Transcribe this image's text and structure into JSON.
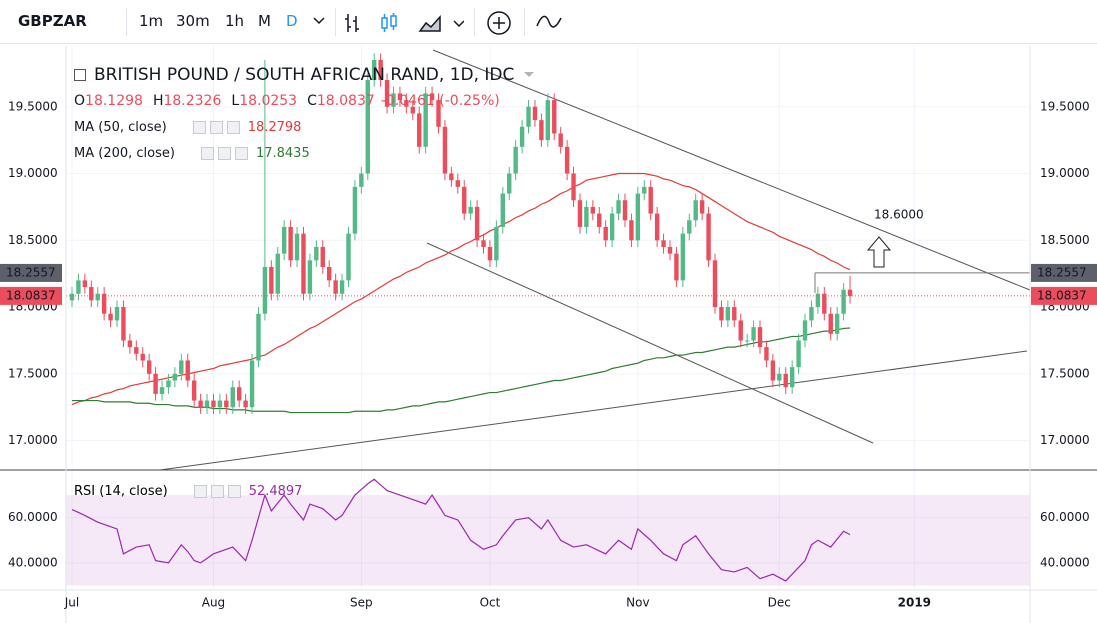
{
  "toolbar": {
    "symbol": "GBPZAR",
    "intervals": [
      "1m",
      "30m",
      "1h",
      "M",
      "D"
    ]
  },
  "chart_data": {
    "type": "candlestick",
    "title": "BRITISH POUND / SOUTH AFRICAN RAND, 1D, IDC",
    "ohlc_labels": [
      "O",
      "H",
      "L",
      "C"
    ],
    "change": "-0.0461 (-0.25%)",
    "categories": [
      "Jul",
      null,
      null,
      null,
      null,
      null,
      null,
      null,
      null,
      null,
      null,
      null,
      null,
      null,
      null,
      null,
      null,
      null,
      null,
      null,
      null,
      null,
      "Aug",
      null,
      null,
      null,
      null,
      null,
      null,
      null,
      null,
      null,
      null,
      null,
      null,
      null,
      null,
      null,
      null,
      null,
      null,
      null,
      null,
      null,
      null,
      "Sep",
      null,
      null,
      null,
      null,
      null,
      null,
      null,
      null,
      null,
      null,
      null,
      null,
      null,
      null,
      null,
      null,
      null,
      null,
      null,
      "Oct",
      null,
      null,
      null,
      null,
      null,
      null,
      null,
      null,
      null,
      null,
      null,
      null,
      null,
      null,
      null,
      null,
      null,
      null,
      null,
      null,
      null,
      null,
      "Nov",
      null,
      null,
      null,
      null,
      null,
      null,
      null,
      null,
      null,
      null,
      null,
      null,
      null,
      null,
      null,
      null,
      null,
      null,
      null,
      null,
      null,
      "Dec",
      null,
      null,
      null,
      null,
      null,
      null,
      null,
      null,
      null,
      null,
      null,
      null,
      null,
      null,
      null,
      null,
      null,
      null,
      null,
      null,
      "2019",
      null,
      null,
      null,
      null,
      null,
      null,
      null,
      null,
      null,
      null,
      null,
      null,
      null,
      null,
      null,
      null,
      null,
      null
    ],
    "open": [
      18.05,
      18.1,
      18.2,
      18.15,
      18.05,
      18.1,
      17.95,
      17.9,
      18.0,
      17.75,
      17.7,
      17.65,
      17.6,
      17.5,
      17.35,
      17.4,
      17.45,
      17.5,
      17.6,
      17.45,
      17.3,
      17.25,
      17.3,
      17.25,
      17.3,
      17.25,
      17.4,
      17.3,
      17.25,
      17.6,
      17.95,
      18.3,
      18.1,
      18.4,
      18.6,
      18.35,
      18.55,
      18.1,
      18.35,
      18.45,
      18.3,
      18.2,
      18.1,
      18.2,
      18.55,
      18.9,
      19.0,
      19.7,
      19.85,
      19.7,
      19.5,
      19.6,
      19.55,
      19.5,
      19.45,
      19.2,
      19.6,
      19.55,
      19.35,
      19.0,
      18.95,
      18.9,
      18.7,
      18.75,
      18.5,
      18.45,
      18.35,
      18.6,
      18.85,
      19.0,
      19.2,
      19.35,
      19.5,
      19.4,
      19.25,
      19.55,
      19.3,
      19.2,
      19.0,
      18.8,
      18.6,
      18.75,
      18.7,
      18.6,
      18.5,
      18.7,
      18.8,
      18.65,
      18.5,
      18.85,
      18.9,
      18.7,
      18.5,
      18.45,
      18.4,
      18.2,
      18.55,
      18.65,
      18.8,
      18.7,
      18.35,
      18.0,
      17.9,
      18.0,
      17.9,
      17.75,
      17.75,
      17.85,
      17.7,
      17.6,
      17.45,
      17.5,
      17.4,
      17.55,
      17.75,
      17.9,
      18.0,
      18.1,
      17.95,
      17.8,
      17.95,
      18.1298,
      null,
      null,
      null,
      null,
      null,
      null,
      null,
      null,
      null,
      null,
      null,
      null,
      null,
      null,
      null,
      null,
      null,
      null,
      null,
      null,
      null,
      null,
      null,
      null,
      null,
      null,
      null,
      null
    ],
    "high": [
      18.15,
      18.25,
      18.25,
      18.2,
      18.15,
      18.15,
      18.0,
      18.05,
      18.05,
      17.8,
      17.75,
      17.7,
      17.65,
      17.55,
      17.45,
      17.5,
      17.55,
      17.65,
      17.65,
      17.5,
      17.35,
      17.35,
      17.35,
      17.35,
      17.35,
      17.45,
      17.45,
      17.35,
      17.65,
      18.0,
      19.85,
      18.35,
      18.45,
      18.65,
      18.65,
      18.6,
      18.6,
      18.4,
      18.5,
      18.5,
      18.35,
      18.25,
      18.25,
      18.6,
      18.95,
      19.05,
      19.75,
      19.9,
      19.9,
      19.75,
      19.65,
      19.65,
      19.6,
      19.55,
      19.5,
      19.65,
      19.65,
      19.6,
      19.4,
      19.05,
      19.0,
      18.95,
      18.8,
      18.8,
      18.55,
      18.5,
      18.65,
      18.9,
      19.05,
      19.25,
      19.4,
      19.55,
      19.55,
      19.45,
      19.6,
      19.6,
      19.35,
      19.25,
      19.05,
      18.85,
      18.8,
      18.8,
      18.75,
      18.65,
      18.75,
      18.85,
      18.85,
      18.7,
      18.9,
      18.95,
      18.95,
      18.75,
      18.55,
      18.5,
      18.45,
      18.6,
      18.7,
      18.85,
      18.85,
      18.75,
      18.4,
      18.05,
      18.05,
      18.05,
      17.95,
      17.8,
      17.9,
      17.9,
      17.75,
      17.65,
      17.55,
      17.55,
      17.6,
      17.8,
      17.95,
      18.05,
      18.15,
      18.15,
      18.0,
      18.0,
      18.18,
      18.2326,
      null,
      null,
      null,
      null,
      null,
      null,
      null,
      null,
      null,
      null,
      null,
      null,
      null,
      null,
      null,
      null,
      null,
      null,
      null,
      null,
      null,
      null,
      null,
      null,
      null,
      null,
      null,
      null
    ],
    "low": [
      18.0,
      18.05,
      18.1,
      18.0,
      18.0,
      17.9,
      17.85,
      17.85,
      17.7,
      17.65,
      17.6,
      17.55,
      17.45,
      17.3,
      17.3,
      17.35,
      17.4,
      17.45,
      17.4,
      17.25,
      17.2,
      17.2,
      17.2,
      17.2,
      17.2,
      17.2,
      17.25,
      17.2,
      17.2,
      17.55,
      17.9,
      18.05,
      18.05,
      18.35,
      18.3,
      18.3,
      18.05,
      18.05,
      18.3,
      18.25,
      18.15,
      18.05,
      18.05,
      18.15,
      18.5,
      18.85,
      18.95,
      19.65,
      19.65,
      19.45,
      19.45,
      19.5,
      19.45,
      19.4,
      19.15,
      19.15,
      19.5,
      19.3,
      18.95,
      18.9,
      18.85,
      18.65,
      18.65,
      18.45,
      18.4,
      18.3,
      18.3,
      18.55,
      18.8,
      18.95,
      19.15,
      19.3,
      19.35,
      19.2,
      19.2,
      19.25,
      19.15,
      18.95,
      18.75,
      18.55,
      18.55,
      18.65,
      18.55,
      18.45,
      18.45,
      18.65,
      18.6,
      18.45,
      18.45,
      18.8,
      18.65,
      18.45,
      18.4,
      18.35,
      18.15,
      18.15,
      18.5,
      18.6,
      18.65,
      18.3,
      17.95,
      17.85,
      17.85,
      17.85,
      17.7,
      17.7,
      17.7,
      17.65,
      17.55,
      17.4,
      17.4,
      17.35,
      17.35,
      17.5,
      17.7,
      17.85,
      17.95,
      17.9,
      17.75,
      17.75,
      17.9,
      18.0253,
      null,
      null,
      null,
      null,
      null,
      null,
      null,
      null,
      null,
      null,
      null,
      null,
      null,
      null,
      null,
      null,
      null,
      null,
      null,
      null,
      null,
      null,
      null,
      null,
      null,
      null,
      null,
      null
    ],
    "close": [
      18.1,
      18.2,
      18.15,
      18.05,
      18.1,
      17.95,
      17.9,
      18.0,
      17.75,
      17.7,
      17.65,
      17.6,
      17.5,
      17.35,
      17.4,
      17.45,
      17.5,
      17.6,
      17.45,
      17.3,
      17.25,
      17.3,
      17.25,
      17.3,
      17.25,
      17.4,
      17.3,
      17.25,
      17.6,
      17.95,
      18.3,
      18.1,
      18.4,
      18.6,
      18.35,
      18.55,
      18.1,
      18.35,
      18.45,
      18.3,
      18.2,
      18.1,
      18.2,
      18.55,
      18.9,
      19.0,
      19.7,
      19.85,
      19.7,
      19.5,
      19.6,
      19.55,
      19.5,
      19.45,
      19.2,
      19.6,
      19.55,
      19.35,
      19.0,
      18.95,
      18.9,
      18.7,
      18.75,
      18.5,
      18.45,
      18.35,
      18.6,
      18.85,
      19.0,
      19.2,
      19.35,
      19.5,
      19.4,
      19.25,
      19.55,
      19.3,
      19.2,
      19.0,
      18.8,
      18.6,
      18.75,
      18.7,
      18.6,
      18.5,
      18.7,
      18.8,
      18.65,
      18.5,
      18.85,
      18.9,
      18.7,
      18.5,
      18.45,
      18.4,
      18.2,
      18.55,
      18.65,
      18.8,
      18.7,
      18.35,
      18.0,
      17.9,
      18.0,
      17.9,
      17.75,
      17.75,
      17.85,
      17.7,
      17.6,
      17.45,
      17.5,
      17.4,
      17.55,
      17.75,
      17.9,
      18.0,
      18.1,
      17.95,
      17.8,
      17.95,
      18.13,
      18.0837,
      null,
      null,
      null,
      null,
      null,
      null,
      null,
      null,
      null,
      null,
      null,
      null,
      null,
      null,
      null,
      null,
      null,
      null,
      null,
      null,
      null,
      null,
      null,
      null,
      null,
      null,
      null,
      null
    ],
    "up_color": "#53b987",
    "down_color": "#eb4d5c",
    "series": [
      {
        "name": "MA (50, close)",
        "color": "#e53935",
        "values": [
          17.27,
          17.29,
          17.3,
          17.32,
          17.33,
          17.35,
          17.36,
          17.38,
          17.39,
          17.41,
          17.42,
          17.43,
          17.44,
          17.45,
          17.46,
          17.47,
          17.48,
          17.49,
          17.5,
          17.51,
          17.52,
          17.53,
          17.54,
          17.56,
          17.57,
          17.58,
          17.59,
          17.6,
          17.61,
          17.63,
          17.64,
          17.67,
          17.7,
          17.72,
          17.75,
          17.78,
          17.81,
          17.84,
          17.86,
          17.89,
          17.92,
          17.95,
          17.98,
          18.01,
          18.04,
          18.06,
          18.09,
          18.12,
          18.15,
          18.18,
          18.21,
          18.23,
          18.26,
          18.28,
          18.3,
          18.33,
          18.35,
          18.37,
          18.39,
          18.42,
          18.44,
          18.47,
          18.49,
          18.52,
          18.54,
          18.57,
          18.59,
          18.62,
          18.64,
          18.67,
          18.69,
          18.72,
          18.74,
          18.77,
          18.79,
          18.82,
          18.85,
          18.87,
          18.9,
          18.92,
          18.95,
          18.96,
          18.97,
          18.98,
          18.99,
          19.0,
          19.0,
          19.0,
          19.0,
          19.0,
          18.99,
          18.98,
          18.96,
          18.95,
          18.93,
          18.91,
          18.9,
          18.88,
          18.85,
          18.82,
          18.79,
          18.76,
          18.73,
          18.7,
          18.67,
          18.64,
          18.62,
          18.6,
          18.58,
          18.56,
          18.53,
          18.51,
          18.49,
          18.47,
          18.45,
          18.43,
          18.4,
          18.38,
          18.35,
          18.33,
          18.3,
          18.2798,
          null,
          null,
          null,
          null,
          null,
          null,
          null,
          null,
          null,
          null,
          null,
          null,
          null,
          null,
          null,
          null,
          null,
          null,
          null,
          null,
          null,
          null,
          null,
          null,
          null,
          null,
          null,
          null
        ]
      },
      {
        "name": "MA (200, close)",
        "color": "#2e7d32",
        "values": [
          17.3,
          17.3,
          17.3,
          17.3,
          17.3,
          17.29,
          17.29,
          17.29,
          17.29,
          17.29,
          17.28,
          17.28,
          17.28,
          17.27,
          17.27,
          17.27,
          17.26,
          17.26,
          17.26,
          17.25,
          17.25,
          17.25,
          17.24,
          17.24,
          17.24,
          17.23,
          17.23,
          17.23,
          17.22,
          17.22,
          17.22,
          17.22,
          17.22,
          17.22,
          17.21,
          17.21,
          17.21,
          17.21,
          17.21,
          17.21,
          17.21,
          17.21,
          17.21,
          17.21,
          17.22,
          17.22,
          17.22,
          17.22,
          17.22,
          17.23,
          17.23,
          17.24,
          17.25,
          17.26,
          17.26,
          17.27,
          17.28,
          17.29,
          17.29,
          17.3,
          17.31,
          17.32,
          17.33,
          17.34,
          17.35,
          17.36,
          17.36,
          17.37,
          17.38,
          17.39,
          17.4,
          17.41,
          17.42,
          17.43,
          17.44,
          17.45,
          17.45,
          17.46,
          17.47,
          17.48,
          17.49,
          17.5,
          17.51,
          17.52,
          17.54,
          17.55,
          17.56,
          17.57,
          17.58,
          17.6,
          17.61,
          17.62,
          17.62,
          17.63,
          17.64,
          17.64,
          17.65,
          17.66,
          17.66,
          17.67,
          17.68,
          17.69,
          17.7,
          17.7,
          17.71,
          17.72,
          17.73,
          17.74,
          17.74,
          17.75,
          17.76,
          17.77,
          17.78,
          17.78,
          17.79,
          17.8,
          17.81,
          17.82,
          17.82,
          17.83,
          17.84,
          17.8435,
          null,
          null,
          null,
          null,
          null,
          null,
          null,
          null,
          null,
          null,
          null,
          null,
          null,
          null,
          null,
          null,
          null,
          null,
          null,
          null,
          null,
          null,
          null,
          null,
          null,
          null,
          null,
          null
        ]
      }
    ],
    "ylim": [
      16.78,
      19.91
    ],
    "yticks": [
      {
        "value": 17,
        "label": "17.0000"
      },
      {
        "value": 17.5,
        "label": "17.5000"
      },
      {
        "value": 18,
        "label": "18.0000"
      },
      {
        "value": 18.5,
        "label": "18.5000"
      },
      {
        "value": 19,
        "label": "19.0000"
      },
      {
        "value": 19.5,
        "label": "19.5000"
      }
    ],
    "grid": true,
    "price_levels": [
      {
        "value": 18.2557,
        "label": "18.2557",
        "color": "#5d606b"
      },
      {
        "value": 18.0837,
        "label": "18.0837",
        "color": "#eb4d5c"
      }
    ],
    "annotation": {
      "value": 18.6,
      "label": "18.6000"
    },
    "rsi": {
      "name": "RSI (14, close)",
      "color": "#9c27b0",
      "ylim": [
        28,
        78
      ],
      "yticks": [
        {
          "value": 40,
          "label": "40.0000"
        },
        {
          "value": 60,
          "label": "60.0000"
        }
      ],
      "band": [
        30,
        70
      ],
      "values": [
        63.6,
        62.3,
        61,
        59.5,
        58,
        57,
        56,
        55,
        44,
        45.5,
        47,
        47.5,
        48,
        41,
        40.5,
        40,
        44,
        48,
        45,
        41,
        40,
        42,
        44,
        45,
        46,
        47,
        44,
        41,
        50,
        60,
        70,
        63,
        66.5,
        70,
        66,
        62.5,
        59,
        66,
        65,
        64,
        61.5,
        59,
        61,
        65.5,
        70,
        72.5,
        75,
        77,
        74.5,
        72,
        71,
        70,
        69,
        68,
        67,
        66,
        70,
        65.5,
        61,
        60,
        59,
        54.5,
        50,
        48,
        46,
        47,
        48,
        52,
        55.5,
        59,
        59.5,
        60,
        57.5,
        55,
        59,
        54.5,
        50,
        48.5,
        47,
        47.5,
        48,
        46.7,
        45.3,
        44,
        47,
        50,
        48,
        46,
        55,
        52.5,
        50,
        47,
        44,
        42.5,
        41,
        48,
        50,
        52,
        48,
        44,
        40.5,
        37,
        36.5,
        36,
        37,
        38,
        35.5,
        33,
        34,
        35,
        33.5,
        32,
        35,
        38,
        41,
        48,
        50,
        48.5,
        47,
        50.5,
        54,
        52.4897,
        null,
        null,
        null,
        null,
        null,
        null,
        null,
        null,
        null,
        null,
        null,
        null,
        null,
        null,
        null,
        null,
        null,
        null,
        null,
        null,
        null,
        null,
        null,
        null,
        null,
        null,
        null,
        null
      ]
    }
  }
}
